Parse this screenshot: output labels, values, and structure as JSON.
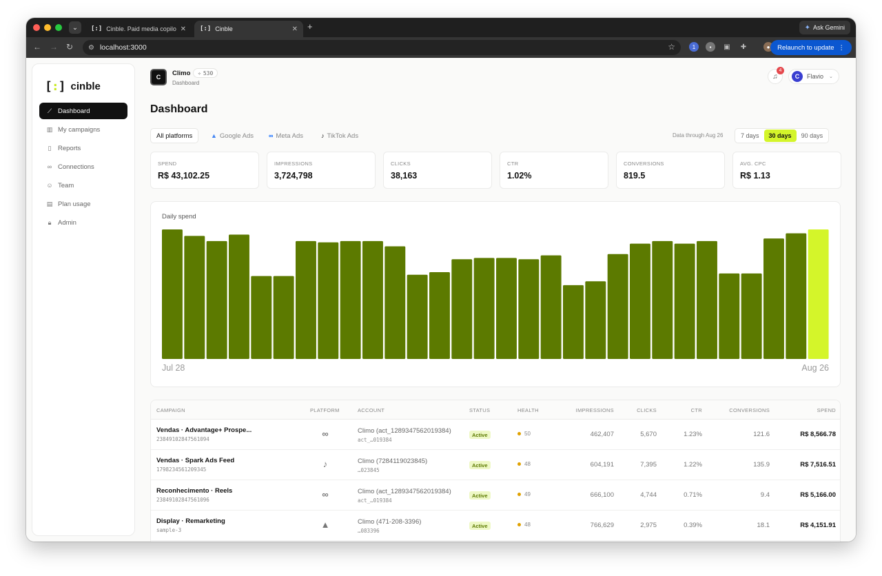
{
  "browser": {
    "tabs": [
      {
        "favicon": "[:]",
        "title": "Cinble. Paid media copilot for"
      },
      {
        "favicon": "[:]",
        "title": "Cinble"
      }
    ],
    "url": "localhost:3000",
    "gemini_label": "Ask Gemini",
    "relaunch_label": "Relaunch to update"
  },
  "sidebar": {
    "logo_text": "cinble",
    "items": [
      {
        "label": "Dashboard",
        "icon": "chart-line-icon"
      },
      {
        "label": "My campaigns",
        "icon": "bar-chart-icon"
      },
      {
        "label": "Reports",
        "icon": "document-icon"
      },
      {
        "label": "Connections",
        "icon": "link-icon"
      },
      {
        "label": "Team",
        "icon": "users-icon"
      },
      {
        "label": "Plan usage",
        "icon": "receipt-icon"
      },
      {
        "label": "Admin",
        "icon": "lock-icon"
      }
    ]
  },
  "workspace": {
    "avatar_letter": "C",
    "name": "Climo",
    "credits": "530",
    "breadcrumb": "Dashboard"
  },
  "notifications": {
    "count": "4"
  },
  "user": {
    "avatar_letter": "C",
    "name": "Flavio"
  },
  "page": {
    "title": "Dashboard"
  },
  "filters": {
    "platforms": [
      "All platforms",
      "Google Ads",
      "Meta Ads",
      "TikTok Ads"
    ],
    "data_through": "Data through Aug 26",
    "ranges": [
      "7 days",
      "30 days",
      "90 days"
    ],
    "active_range": "30 days"
  },
  "kpis": [
    {
      "label": "SPEND",
      "value": "R$ 43,102.25"
    },
    {
      "label": "IMPRESSIONS",
      "value": "3,724,798"
    },
    {
      "label": "CLICKS",
      "value": "38,163"
    },
    {
      "label": "CTR",
      "value": "1.02%"
    },
    {
      "label": "CONVERSIONS",
      "value": "819.5"
    },
    {
      "label": "AVG. CPC",
      "value": "R$ 1.13"
    }
  ],
  "chart_data": {
    "type": "bar",
    "title": "Daily spend",
    "x_start_label": "Jul 28",
    "x_end_label": "Aug 26",
    "values": [
      100,
      95,
      91,
      96,
      64,
      64,
      91,
      90,
      91,
      91,
      87,
      65,
      67,
      77,
      78,
      78,
      77,
      80,
      57,
      60,
      81,
      89,
      91,
      89,
      91,
      66,
      66,
      93,
      97,
      100
    ],
    "bar_color": "#5c7a00",
    "highlight_color": "#d4f52a",
    "highlight_index": 29
  },
  "table": {
    "headers": [
      "CAMPAIGN",
      "PLATFORM",
      "ACCOUNT",
      "STATUS",
      "HEALTH",
      "IMPRESSIONS",
      "CLICKS",
      "CTR",
      "CONVERSIONS",
      "SPEND"
    ],
    "rows": [
      {
        "name": "Vendas · Advantage+ Prospe...",
        "id": "238491028475610​94",
        "platform_icon": "meta-icon",
        "account": "Climo (act_1289347562019384)",
        "account_id": "act_…019384",
        "status": "Active",
        "health": "50",
        "impressions": "462,407",
        "clicks": "5,670",
        "ctr": "1.23%",
        "conversions": "121.6",
        "spend": "R$ 8,566.78"
      },
      {
        "name": "Vendas · Spark Ads Feed",
        "id": "1798234561209345",
        "platform_icon": "tiktok-icon",
        "account": "Climo (7284119023845)",
        "account_id": "…023845",
        "status": "Active",
        "health": "48",
        "impressions": "604,191",
        "clicks": "7,395",
        "ctr": "1.22%",
        "conversions": "135.9",
        "spend": "R$ 7,516.51"
      },
      {
        "name": "Reconhecimento · Reels",
        "id": "23849102847561096",
        "platform_icon": "meta-icon",
        "account": "Climo (act_1289347562019384)",
        "account_id": "act_…019384",
        "status": "Active",
        "health": "49",
        "impressions": "666,100",
        "clicks": "4,744",
        "ctr": "0.71%",
        "conversions": "9.4",
        "spend": "R$ 5,166.00"
      },
      {
        "name": "Display · Remarketing",
        "id": "sample-3",
        "platform_icon": "google-ads-icon",
        "account": "Climo (471-208-3396)",
        "account_id": "…083396",
        "status": "Active",
        "health": "48",
        "impressions": "766,629",
        "clicks": "2,975",
        "ctr": "0.39%",
        "conversions": "18.1",
        "spend": "R$ 4,151.91"
      }
    ]
  }
}
